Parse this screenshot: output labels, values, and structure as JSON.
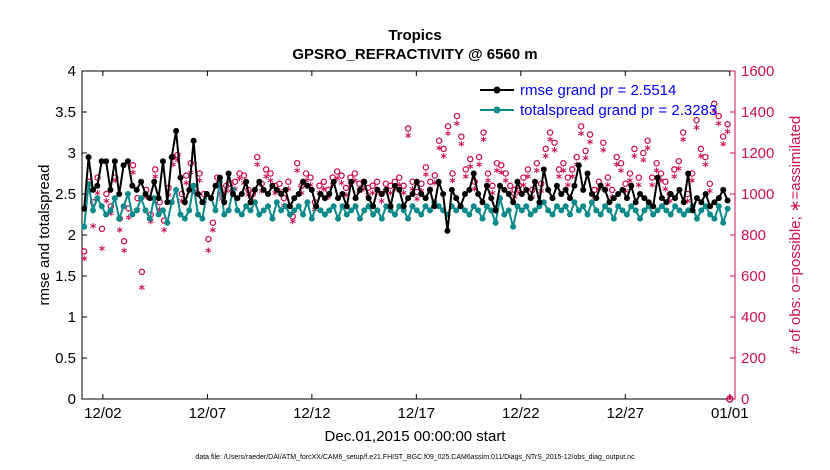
{
  "chart_data": {
    "type": "line",
    "title": "Tropics",
    "subtitle": "GPSRO_REFRACTIVITY @ 6560 m",
    "xlabel": "Dec.01,2015 00:00:00 start",
    "ylabel_left": "rmse and totalspread",
    "ylabel_right": "# of obs: o=possible; ∗=assimilated",
    "ylim_left": [
      0,
      4
    ],
    "ylim_right": [
      0,
      1600
    ],
    "xlim": [
      0,
      31.25
    ],
    "x_ticks": [
      1,
      6,
      11,
      16,
      21,
      26,
      31
    ],
    "x_tick_labels": [
      "12/02",
      "12/07",
      "12/12",
      "12/17",
      "12/22",
      "12/27",
      "01/01"
    ],
    "y_ticks_left": [
      "0",
      "0.5",
      "1",
      "1.5",
      "2",
      "2.5",
      "3",
      "3.5",
      "4"
    ],
    "y_ticks_right": [
      "0",
      "200",
      "400",
      "600",
      "800",
      "1000",
      "1200",
      "1400",
      "1600"
    ],
    "legend_position": "top-right",
    "footnote": "data file: /Users/raeder/DAI/ATM_forcXX/CAM6_setup/f.e21.FHIST_BGC.f09_025.CAM6assim.011/Diags_NTrS_2015-12/obs_diag_output.nc",
    "colors": {
      "rmse": "#000000",
      "spread": "#0d8a8a",
      "nobs": "#cc1155",
      "legend_text": "#0000ff"
    },
    "series": [
      {
        "name": "rmse grand pr = 2.5514",
        "axis": "left",
        "values": [
          2.32,
          2.95,
          2.55,
          2.6,
          2.9,
          2.9,
          2.55,
          2.9,
          2.5,
          2.85,
          2.9,
          2.6,
          2.55,
          2.65,
          2.5,
          2.45,
          2.65,
          2.45,
          2.9,
          2.4,
          2.95,
          3.27,
          2.7,
          2.4,
          2.55,
          3.15,
          2.5,
          2.4,
          2.5,
          2.45,
          2.6,
          2.7,
          2.4,
          2.75,
          2.5,
          2.45,
          2.5,
          2.65,
          2.4,
          2.55,
          2.65,
          2.55,
          2.5,
          2.6,
          2.55,
          2.5,
          2.55,
          2.35,
          2.45,
          2.5,
          2.65,
          2.6,
          2.55,
          2.35,
          2.5,
          2.45,
          2.5,
          2.65,
          2.45,
          2.5,
          2.35,
          2.65,
          2.45,
          2.55,
          2.65,
          2.45,
          2.35,
          2.55,
          2.5,
          2.55,
          2.35,
          2.6,
          2.55,
          2.35,
          2.45,
          2.5,
          2.65,
          2.5,
          2.45,
          2.55,
          2.35,
          2.65,
          2.5,
          2.05,
          2.55,
          2.45,
          2.35,
          2.5,
          2.55,
          2.75,
          2.5,
          2.4,
          2.6,
          2.45,
          2.3,
          2.6,
          2.55,
          2.5,
          2.4,
          2.65,
          2.5,
          2.55,
          2.45,
          2.65,
          2.4,
          2.8,
          2.55,
          2.45,
          2.6,
          2.5,
          2.55,
          2.45,
          2.6,
          2.85,
          2.55,
          2.75,
          2.5,
          2.45,
          2.6,
          2.55,
          2.4,
          2.45,
          2.5,
          2.55,
          2.45,
          2.6,
          2.4,
          2.5,
          2.45,
          2.4,
          2.35,
          2.7,
          2.45,
          2.4,
          2.5,
          2.45,
          2.55,
          2.4,
          2.75,
          2.3,
          2.45,
          2.4,
          2.5,
          2.35,
          2.4,
          2.45,
          2.55,
          2.42
        ]
      },
      {
        "name": "totalspread grand pr = 2.3283",
        "axis": "left",
        "values": [
          2.1,
          2.62,
          2.3,
          2.45,
          2.35,
          2.25,
          2.3,
          2.45,
          2.2,
          2.35,
          2.5,
          2.25,
          2.3,
          2.45,
          2.3,
          2.2,
          2.45,
          2.25,
          2.3,
          2.15,
          2.4,
          2.55,
          2.25,
          2.2,
          2.3,
          2.6,
          2.25,
          2.2,
          2.5,
          2.45,
          2.3,
          2.65,
          2.25,
          2.3,
          2.55,
          2.3,
          2.25,
          2.35,
          2.3,
          2.4,
          2.25,
          2.3,
          2.35,
          2.2,
          2.4,
          2.3,
          2.35,
          2.25,
          2.3,
          2.35,
          2.25,
          2.4,
          2.2,
          2.35,
          2.3,
          2.25,
          2.3,
          2.35,
          2.2,
          2.35,
          2.25,
          2.3,
          2.35,
          2.2,
          2.3,
          2.35,
          2.25,
          2.3,
          2.2,
          2.35,
          2.3,
          2.25,
          2.35,
          2.3,
          2.2,
          2.35,
          2.3,
          2.25,
          2.35,
          2.3,
          2.4,
          2.35,
          2.3,
          2.25,
          2.35,
          2.3,
          2.35,
          2.3,
          2.25,
          2.35,
          2.3,
          2.2,
          2.35,
          2.3,
          2.15,
          2.45,
          2.25,
          2.3,
          2.1,
          2.35,
          2.3,
          2.35,
          2.25,
          2.3,
          2.35,
          2.4,
          2.3,
          2.25,
          2.35,
          2.3,
          2.35,
          2.25,
          2.4,
          2.3,
          2.35,
          2.25,
          2.4,
          2.3,
          2.25,
          2.35,
          2.3,
          2.2,
          2.35,
          2.3,
          2.25,
          2.35,
          2.3,
          2.2,
          2.3,
          2.35,
          2.25,
          2.3,
          2.35,
          2.3,
          2.25,
          2.35,
          2.3,
          2.25,
          2.3,
          2.35,
          2.2,
          2.3,
          2.35,
          2.25,
          2.2,
          2.35,
          2.15,
          2.32
        ]
      },
      {
        "name": "possible obs",
        "axis": "right",
        "marker": "o",
        "values": [
          720,
          1060,
          960,
          1080,
          830,
          1000,
          940,
          1080,
          880,
          770,
          930,
          1140,
          980,
          620,
          1020,
          900,
          1120,
          960,
          870,
          1030,
          1180,
          1190,
          1000,
          1090,
          1150,
          1030,
          1100,
          1000,
          780,
          860,
          1080,
          1000,
          1040,
          1050,
          1060,
          1100,
          1090,
          1020,
          1000,
          1180,
          1050,
          1120,
          1100,
          1040,
          1050,
          980,
          1060,
          890,
          1150,
          1040,
          1100,
          1080,
          960,
          1040,
          1060,
          1020,
          1080,
          1110,
          1090,
          1030,
          1080,
          1100,
          1050,
          1060,
          1030,
          1040,
          1060,
          1000,
          1050,
          1040,
          1060,
          1080,
          1040,
          1320,
          1060,
          1010,
          1050,
          1130,
          1060,
          1090,
          1260,
          1220,
          1330,
          1100,
          1380,
          1280,
          1120,
          1170,
          1060,
          1180,
          1300,
          1100,
          1040,
          1150,
          1140,
          1100,
          1040,
          1020,
          1040,
          1080,
          1120,
          1020,
          1150,
          1050,
          1220,
          1300,
          1250,
          1120,
          1150,
          1080,
          1120,
          1180,
          1330,
          1210,
          1290,
          1020,
          1060,
          1250,
          1080,
          1020,
          1180,
          1150,
          1050,
          1100,
          1220,
          1080,
          1200,
          1260,
          1080,
          1150,
          1100,
          1060,
          1000,
          1120,
          1160,
          1300,
          1000,
          1100,
          1360,
          1220,
          1180,
          1050,
          1440,
          1380,
          1280,
          1340
        ]
      },
      {
        "name": "assimilated obs",
        "axis": "right",
        "marker": "*",
        "values": [
          680,
          1040,
          840,
          1000,
          730,
          960,
          900,
          1060,
          820,
          720,
          880,
          1100,
          920,
          540,
          980,
          860,
          1080,
          920,
          820,
          990,
          1140,
          1160,
          960,
          1050,
          1100,
          1000,
          1060,
          960,
          720,
          820,
          1040,
          970,
          1010,
          1010,
          1020,
          1070,
          1050,
          990,
          960,
          1140,
          1010,
          1080,
          1060,
          1000,
          1010,
          940,
          1020,
          860,
          1110,
          1000,
          1060,
          1040,
          920,
          1000,
          1020,
          980,
          1040,
          1070,
          1050,
          990,
          1040,
          1060,
          1010,
          1020,
          990,
          1000,
          1020,
          960,
          1010,
          1000,
          1020,
          1040,
          1000,
          1280,
          1020,
          970,
          1010,
          1090,
          1020,
          1050,
          1220,
          1180,
          1290,
          1060,
          1340,
          1240,
          1080,
          1130,
          1020,
          1140,
          1260,
          1060,
          1000,
          1110,
          1100,
          1060,
          1000,
          980,
          1000,
          1040,
          1080,
          980,
          1110,
          1010,
          1180,
          1260,
          1210,
          1080,
          1110,
          1040,
          1080,
          1140,
          1290,
          1170,
          1250,
          980,
          1020,
          1210,
          1040,
          980,
          1140,
          1110,
          1010,
          1060,
          1180,
          1040,
          1160,
          1220,
          1040,
          1110,
          1060,
          1020,
          960,
          1080,
          1120,
          1260,
          960,
          1060,
          1320,
          1180,
          1140,
          1010,
          1400,
          1340,
          1240,
          1300
        ]
      }
    ]
  }
}
